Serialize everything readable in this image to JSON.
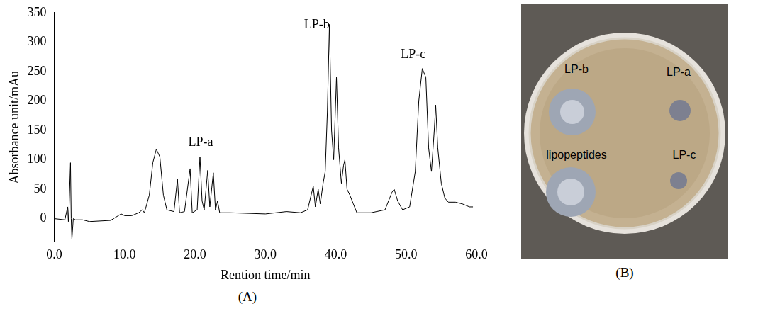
{
  "chart_data": {
    "type": "line",
    "x_label": "Rention time/min",
    "y_label": "Absorbance unit/mAu",
    "x": [
      0.0,
      1.5,
      1.9,
      2.0,
      2.1,
      2.3,
      2.4,
      2.5,
      2.7,
      3.0,
      4.0,
      5.0,
      8.0,
      9.5,
      10.0,
      11.0,
      12.0,
      12.5,
      12.8,
      13.5,
      14.0,
      14.5,
      15.0,
      15.5,
      16.0,
      17.0,
      17.5,
      17.8,
      18.5,
      19.3,
      19.6,
      20.3,
      20.7,
      21.0,
      21.3,
      21.8,
      22.1,
      22.6,
      22.9,
      23.2,
      23.5,
      25.0,
      30.0,
      33.0,
      35.0,
      36.0,
      36.8,
      37.1,
      37.5,
      37.8,
      38.2,
      38.5,
      38.8,
      39.1,
      39.4,
      39.7,
      40.1,
      40.4,
      40.8,
      41.1,
      41.3,
      41.6,
      42.0,
      42.5,
      43.0,
      45.0,
      47.0,
      48.0,
      48.3,
      48.8,
      49.5,
      50.5,
      51.3,
      51.8,
      52.3,
      52.8,
      53.2,
      53.6,
      54.0,
      54.2,
      54.5,
      55.0,
      55.5,
      56.0,
      57.0,
      58.0,
      59.0,
      59.5
    ],
    "values": [
      0,
      -2,
      20,
      -5,
      20,
      95,
      0,
      -35,
      0,
      -2,
      -2,
      -5,
      -3,
      8,
      5,
      5,
      10,
      15,
      10,
      40,
      95,
      118,
      105,
      40,
      15,
      12,
      67,
      10,
      12,
      85,
      10,
      15,
      105,
      30,
      15,
      82,
      20,
      78,
      15,
      30,
      10,
      10,
      8,
      12,
      10,
      15,
      55,
      20,
      50,
      25,
      60,
      80,
      180,
      330,
      150,
      100,
      240,
      120,
      60,
      90,
      100,
      50,
      40,
      25,
      10,
      10,
      15,
      45,
      50,
      30,
      15,
      20,
      80,
      200,
      255,
      240,
      120,
      80,
      150,
      193,
      120,
      60,
      35,
      28,
      28,
      25,
      20,
      20
    ],
    "color": "#000000",
    "xlim": [
      0,
      60
    ],
    "xticks": [
      {
        "value": 0,
        "label": "0.0"
      },
      {
        "value": 10,
        "label": "10.0"
      },
      {
        "value": 20,
        "label": "20.0"
      },
      {
        "value": 30,
        "label": "30.0"
      },
      {
        "value": 40,
        "label": "40.0"
      },
      {
        "value": 50,
        "label": "50.0"
      },
      {
        "value": 60,
        "label": "60.0"
      }
    ],
    "ylim": [
      -40,
      350
    ],
    "yticks": [
      0,
      50,
      100,
      150,
      200,
      250,
      300,
      350
    ],
    "grid": false,
    "annotations": [
      {
        "text": "LP-a",
        "x": 20.8,
        "y": 118
      },
      {
        "text": "LP-b",
        "x": 37.3,
        "y": 318
      },
      {
        "text": "LP-c",
        "x": 51.0,
        "y": 268
      }
    ]
  },
  "panel_labels": [
    "(A)",
    "(B)"
  ],
  "plate_zones": [
    "LP-b",
    "LP-a",
    "lipopeptides",
    "LP-c"
  ]
}
